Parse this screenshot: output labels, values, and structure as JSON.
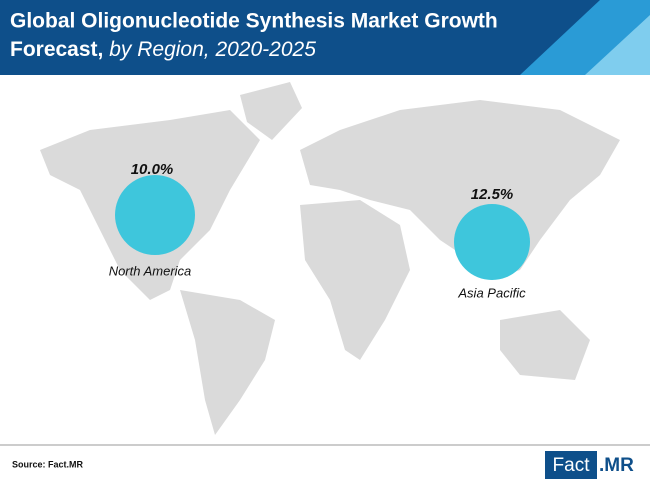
{
  "header": {
    "title": "Global Oligonucleotide Synthesis Market Growth",
    "title_line2": "Forecast,",
    "subtitle": "by Region, 2020-2025"
  },
  "regions": [
    {
      "name": "North America",
      "value_label": "10.0%"
    },
    {
      "name": "Asia Pacific",
      "value_label": "12.5%"
    }
  ],
  "footer": {
    "source": "Source: Fact.MR",
    "logo_main": "Fact",
    "logo_suffix": ".MR"
  }
}
